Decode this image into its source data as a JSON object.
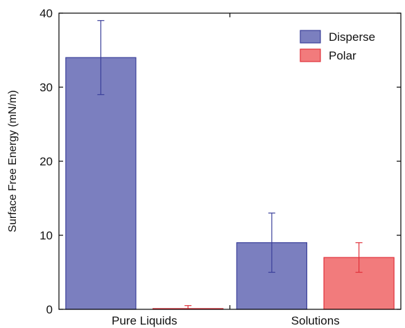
{
  "chart_data": {
    "type": "bar",
    "title": "",
    "xlabel": "",
    "ylabel": "Surface Free Energy (mN/m)",
    "ylim": [
      0,
      40
    ],
    "yticks": [
      0,
      10,
      20,
      30,
      40
    ],
    "grid": false,
    "legend_position": "top-right",
    "categories": [
      "Pure Liquids",
      "Solutions"
    ],
    "series": [
      {
        "name": "Disperse",
        "values": [
          34,
          9
        ],
        "errors": [
          5,
          4
        ],
        "fill": "#7b7fbf",
        "stroke": "#3a3f9a"
      },
      {
        "name": "Polar",
        "values": [
          0.1,
          7
        ],
        "errors": [
          0.4,
          2
        ],
        "fill": "#f27b7c",
        "stroke": "#e0313a"
      }
    ]
  }
}
